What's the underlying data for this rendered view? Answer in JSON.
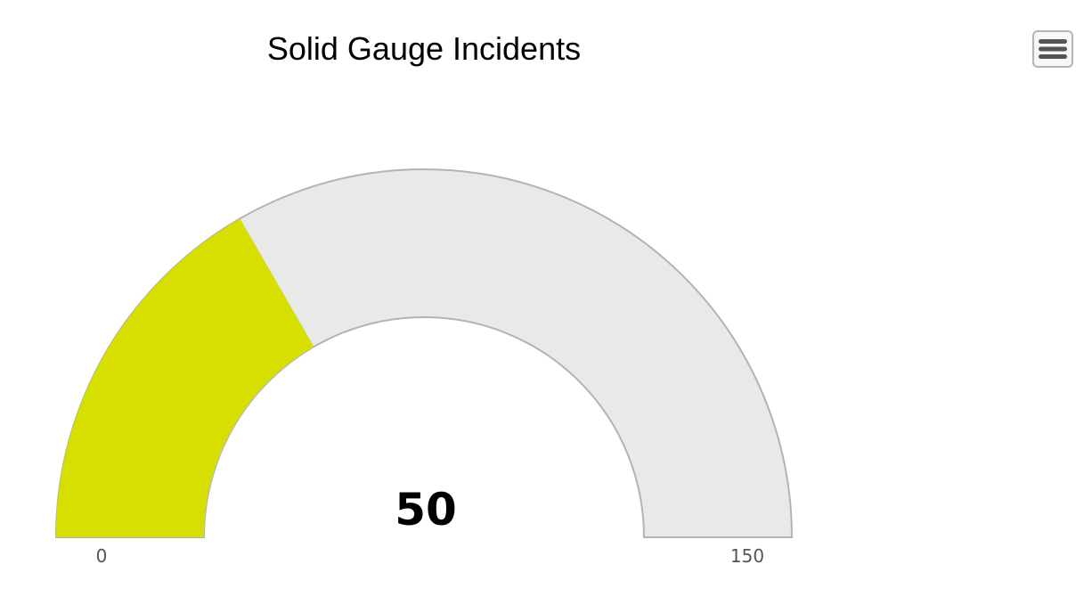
{
  "chart_data": {
    "type": "solid-gauge",
    "title": "Solid Gauge Incidents",
    "value": 50,
    "value_label": "50",
    "min": 0,
    "max": 150,
    "min_label": "0",
    "max_label": "150",
    "colors": {
      "value_fill": "#d6df00",
      "track_fill": "#e9e9e9",
      "track_border": "#b3b3b3"
    }
  },
  "menu": {
    "icon": "hamburger-menu-icon"
  }
}
